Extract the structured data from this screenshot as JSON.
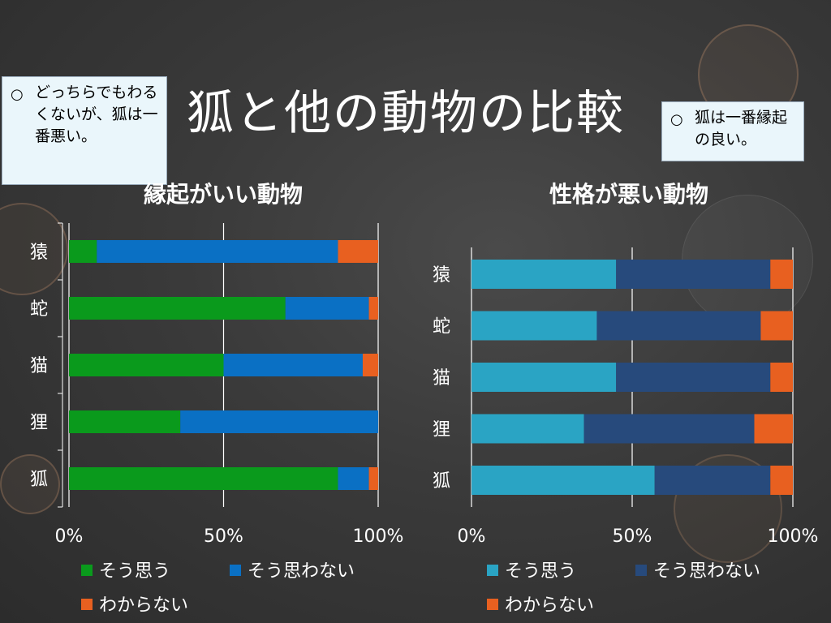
{
  "title": "狐と他の動物の比較",
  "notes": [
    {
      "bullet": "○",
      "text": "どっちらでもわるくないが、狐は一番悪い。"
    },
    {
      "bullet": "○",
      "text": "狐は一番縁起の良い。"
    }
  ],
  "colors": {
    "left_yes": "#0a9a1c",
    "left_no": "#0a70c4",
    "right_yes": "#2aa4c4",
    "right_no": "#274a7c",
    "unknown": "#e86020"
  },
  "chart_data": [
    {
      "type": "bar",
      "orientation": "horizontal",
      "stacked": "percent",
      "title": "縁起がいい動物",
      "categories": [
        "猿",
        "蛇",
        "猫",
        "狸",
        "狐"
      ],
      "series": [
        {
          "name": "そう思う",
          "values": [
            9,
            70,
            50,
            36,
            87
          ]
        },
        {
          "name": "そう思わない",
          "values": [
            78,
            27,
            45,
            64,
            10
          ]
        },
        {
          "name": "わからない",
          "values": [
            13,
            3,
            5,
            0,
            3
          ]
        }
      ],
      "x_ticks": [
        "0%",
        "50%",
        "100%"
      ],
      "xlim": [
        0,
        100
      ],
      "grid": true,
      "legend": "bottom"
    },
    {
      "type": "bar",
      "orientation": "horizontal",
      "stacked": "percent",
      "title": "性格が悪い動物",
      "categories": [
        "猿",
        "蛇",
        "猫",
        "狸",
        "狐"
      ],
      "series": [
        {
          "name": "そう思う",
          "values": [
            45,
            39,
            45,
            35,
            57
          ]
        },
        {
          "name": "そう思わない",
          "values": [
            48,
            51,
            48,
            53,
            36
          ]
        },
        {
          "name": "わからない",
          "values": [
            7,
            10,
            7,
            12,
            7
          ]
        }
      ],
      "x_ticks": [
        "0%",
        "50%",
        "100%"
      ],
      "xlim": [
        0,
        100
      ],
      "grid": true,
      "legend": "bottom"
    }
  ]
}
